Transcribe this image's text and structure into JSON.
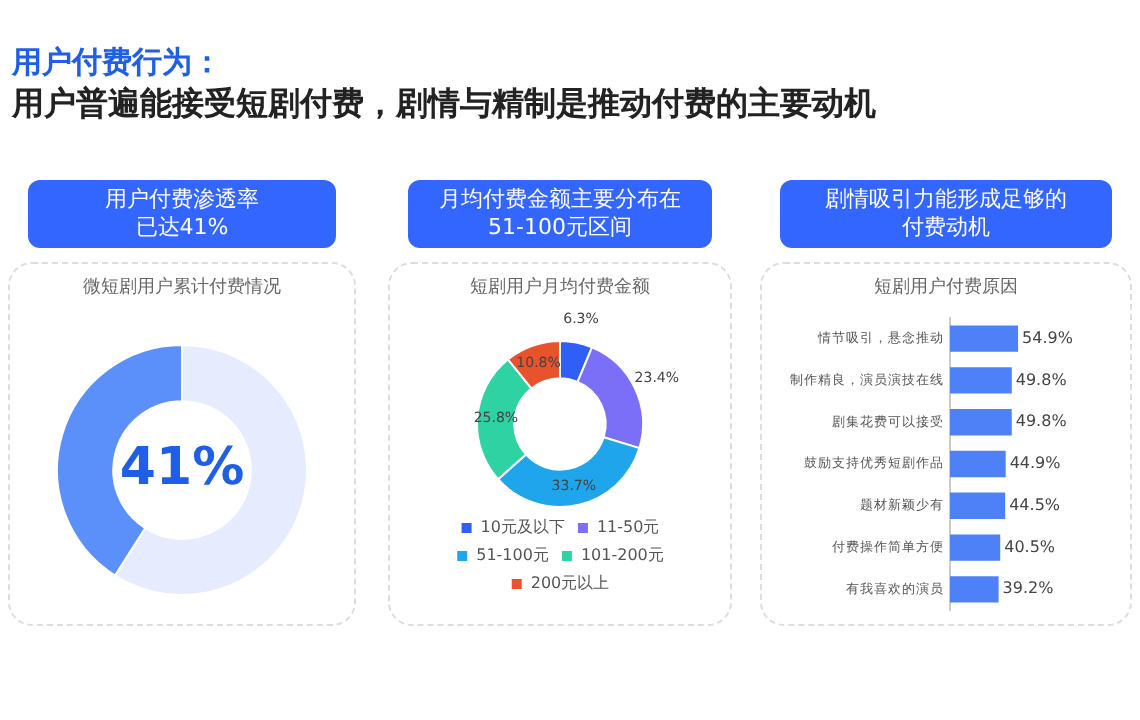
{
  "chart_data": [
    {
      "type": "donut",
      "title": "用户付费渗透率已达41%",
      "subtitle": "微短剧用户累计付费情况",
      "annotations": [
        "用户付费行为：",
        "用户普遍能接受短剧付费，剧情与精制是推动付费的主要动机"
      ],
      "categories": [
        null,
        null
      ],
      "values": [
        59,
        41
      ],
      "colors": [
        "#e6ecfd",
        "#5b8ff9"
      ],
      "value_labels": [
        null,
        "41%"
      ],
      "legend": false
    },
    {
      "type": "donut",
      "title": "月均付费金额主要分布在51-100元区间",
      "subtitle": "短剧用户月均付费金额",
      "categories": [
        "10元及以下",
        "11-50元",
        "51-100元",
        "101-200元",
        "200元以上"
      ],
      "values": [
        6.3,
        23.4,
        33.7,
        25.8,
        10.8
      ],
      "colors": [
        "#2f5ff5",
        "#7b6ff7",
        "#1fa5ec",
        "#2fd2a3",
        "#e8532b"
      ],
      "value_labels": [
        "6.3%",
        "23.4%",
        "33.7%",
        "25.8%",
        "10.8%"
      ],
      "legend": "bottom"
    },
    {
      "type": "bar",
      "orientation": "horizontal",
      "title": "剧情吸引力能形成足够的付费动机",
      "subtitle": "短剧用户付费原因",
      "categories": [
        "情节吸引，悬念推动",
        "制作精良，演员演技在线",
        "剧集花费可以接受",
        "鼓励支持优秀短剧作品",
        "题材新颖少有",
        "付费操作简单方便",
        "有我喜欢的演员"
      ],
      "values": [
        54.9,
        49.8,
        49.8,
        44.9,
        44.5,
        40.5,
        39.2
      ],
      "color": "#4e80f7",
      "value_labels": [
        "54.9%",
        "49.8%",
        "49.8%",
        "44.9%",
        "44.5%",
        "40.5%",
        "39.2%"
      ],
      "tick_labels": "y"
    }
  ]
}
